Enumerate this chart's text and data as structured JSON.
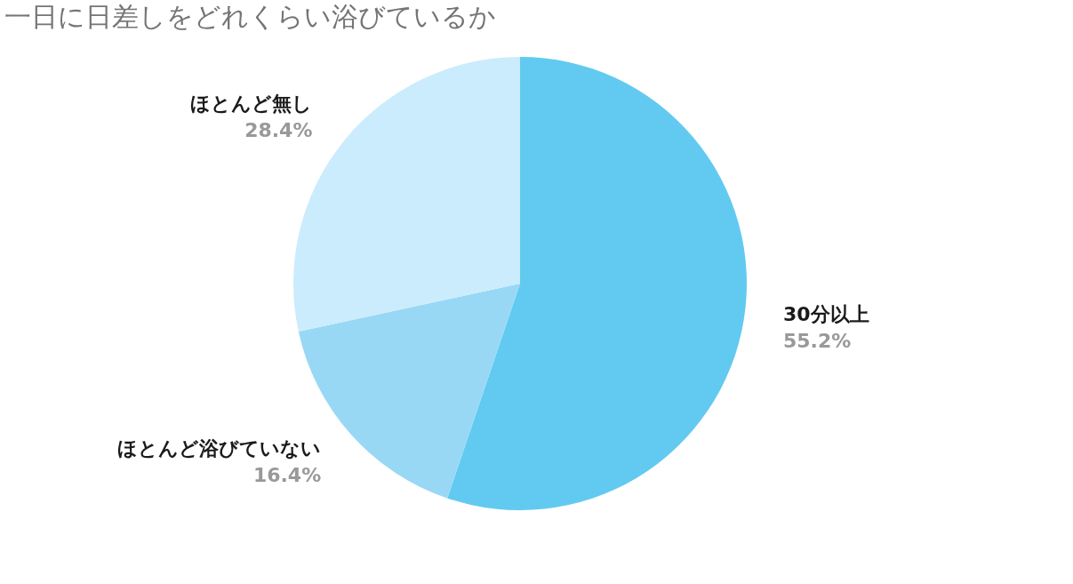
{
  "chart_data": {
    "type": "pie",
    "title": "一日に日差しをどれくらい浴びているか",
    "categories": [
      "30分以上",
      "ほとんど浴びていない",
      "ほとんど無し"
    ],
    "values": [
      55.2,
      16.4,
      28.4
    ],
    "colors": [
      "#62caf1",
      "#99d8f5",
      "#cbecfc"
    ],
    "value_labels": [
      "55.2%",
      "16.4%",
      "28.4%"
    ],
    "legend": false
  }
}
